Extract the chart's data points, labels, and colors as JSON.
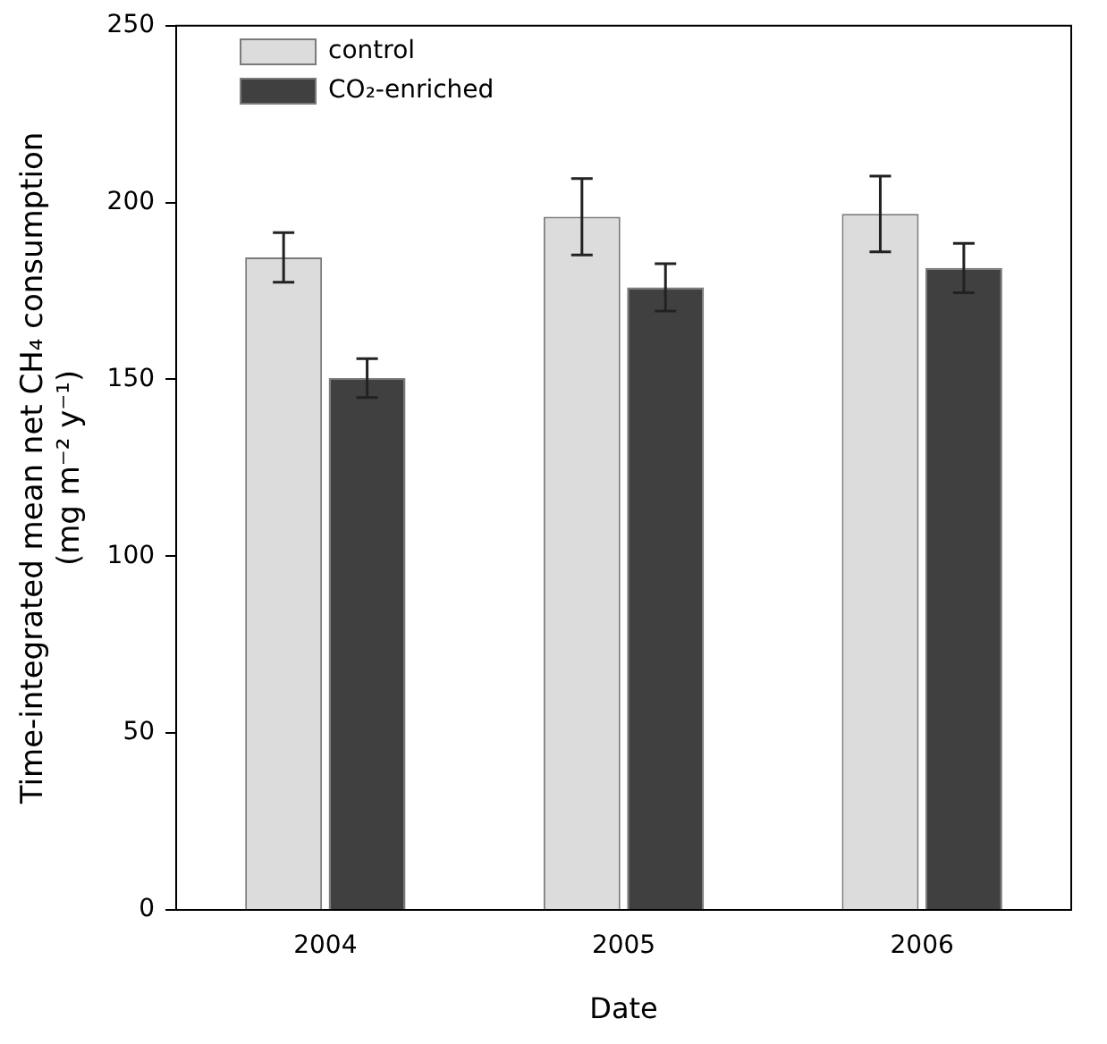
{
  "chart_data": {
    "type": "bar",
    "xlabel": "Date",
    "ylabel": "Time-integrated mean net CH₄ consumption\n(mg m⁻² y⁻¹)",
    "categories": [
      "2004",
      "2005",
      "2006"
    ],
    "series": [
      {
        "name": "control",
        "color": "#dcdcdc",
        "values": [
          184.5,
          196,
          196.8
        ],
        "errors": [
          7,
          10.8,
          10.7
        ]
      },
      {
        "name": "CO₂-enriched",
        "color": "#404040",
        "values": [
          150.4,
          176,
          181.5
        ],
        "errors": [
          5.5,
          6.7,
          7
        ]
      }
    ],
    "ylim": [
      0,
      250
    ],
    "yticks": [
      0,
      50,
      100,
      150,
      200,
      250
    ],
    "grid": false,
    "legend": "top left"
  }
}
